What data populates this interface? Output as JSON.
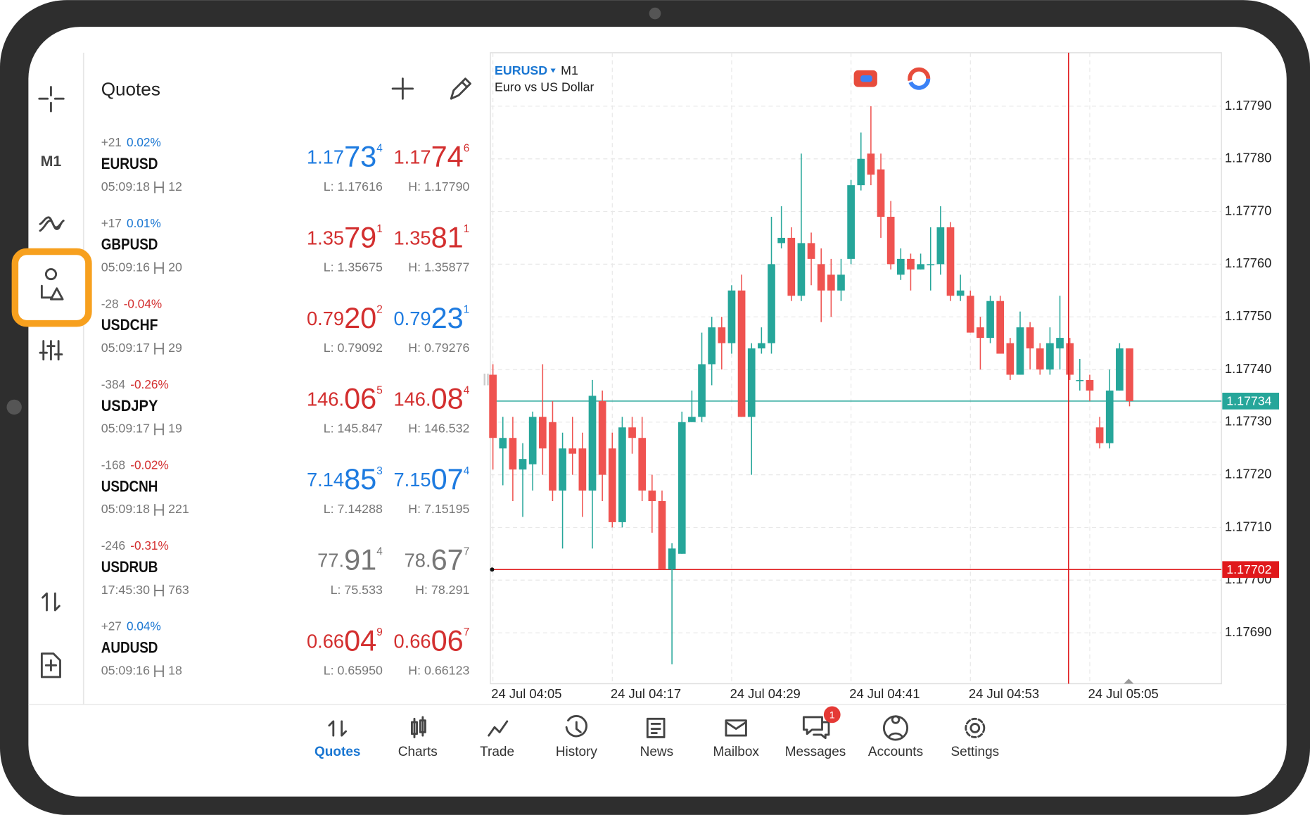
{
  "left_rail": {
    "timeframe": "M1"
  },
  "quotes": {
    "title": "Quotes",
    "rows": [
      {
        "change": "+21",
        "percent": "0.02%",
        "percent_color": "#1976d2",
        "symbol": "EURUSD",
        "time": "05:09:18",
        "spread": "12",
        "bid": {
          "pre": "1.17",
          "big": "73",
          "sup": "4",
          "color": "#1e7be0"
        },
        "ask": {
          "pre": "1.17",
          "big": "74",
          "sup": "6",
          "color": "#d32f2f"
        },
        "low": "L: 1.17616",
        "high": "H: 1.17790"
      },
      {
        "change": "+17",
        "percent": "0.01%",
        "percent_color": "#1976d2",
        "symbol": "GBPUSD",
        "time": "05:09:16",
        "spread": "20",
        "bid": {
          "pre": "1.35",
          "big": "79",
          "sup": "1",
          "color": "#d32f2f"
        },
        "ask": {
          "pre": "1.35",
          "big": "81",
          "sup": "1",
          "color": "#d32f2f"
        },
        "low": "L: 1.35675",
        "high": "H: 1.35877"
      },
      {
        "change": "-28",
        "percent": "-0.04%",
        "percent_color": "#d32f2f",
        "symbol": "USDCHF",
        "time": "05:09:17",
        "spread": "29",
        "bid": {
          "pre": "0.79",
          "big": "20",
          "sup": "2",
          "color": "#d32f2f"
        },
        "ask": {
          "pre": "0.79",
          "big": "23",
          "sup": "1",
          "color": "#1e7be0"
        },
        "low": "L: 0.79092",
        "high": "H: 0.79276"
      },
      {
        "change": "-384",
        "percent": "-0.26%",
        "percent_color": "#d32f2f",
        "symbol": "USDJPY",
        "time": "05:09:17",
        "spread": "19",
        "bid": {
          "pre": "146.",
          "big": "06",
          "sup": "5",
          "color": "#d32f2f"
        },
        "ask": {
          "pre": "146.",
          "big": "08",
          "sup": "4",
          "color": "#d32f2f"
        },
        "low": "L: 145.847",
        "high": "H: 146.532"
      },
      {
        "change": "-168",
        "percent": "-0.02%",
        "percent_color": "#d32f2f",
        "symbol": "USDCNH",
        "time": "05:09:18",
        "spread": "221",
        "bid": {
          "pre": "7.14",
          "big": "85",
          "sup": "3",
          "color": "#1e7be0"
        },
        "ask": {
          "pre": "7.15",
          "big": "07",
          "sup": "4",
          "color": "#1e7be0"
        },
        "low": "L: 7.14288",
        "high": "H: 7.15195"
      },
      {
        "change": "-246",
        "percent": "-0.31%",
        "percent_color": "#d32f2f",
        "symbol": "USDRUB",
        "time": "17:45:30",
        "spread": "763",
        "bid": {
          "pre": "77.",
          "big": "91",
          "sup": "4",
          "color": "#777777"
        },
        "ask": {
          "pre": "78.",
          "big": "67",
          "sup": "7",
          "color": "#777777"
        },
        "low": "L: 75.533",
        "high": "H: 78.291"
      },
      {
        "change": "+27",
        "percent": "0.04%",
        "percent_color": "#1976d2",
        "symbol": "AUDUSD",
        "time": "05:09:16",
        "spread": "18",
        "bid": {
          "pre": "0.66",
          "big": "04",
          "sup": "9",
          "color": "#d32f2f"
        },
        "ask": {
          "pre": "0.66",
          "big": "06",
          "sup": "7",
          "color": "#d32f2f"
        },
        "low": "L: 0.65950",
        "high": "H: 0.66123"
      }
    ]
  },
  "chart_data": {
    "type": "candlestick",
    "symbol": "EURUSD",
    "timeframe": "M1",
    "description": "Euro vs US Dollar",
    "up_color": "#26a69a",
    "down_color": "#ef5350",
    "grid": true,
    "ylim": [
      1.1768,
      1.178
    ],
    "yticks": [
      {
        "value": 1.1769,
        "label": "1.17690"
      },
      {
        "value": 1.177,
        "label": "1.17700"
      },
      {
        "value": 1.1771,
        "label": "1.17710"
      },
      {
        "value": 1.1772,
        "label": "1.17720"
      },
      {
        "value": 1.1773,
        "label": "1.17730"
      },
      {
        "value": 1.1774,
        "label": "1.17740"
      },
      {
        "value": 1.1775,
        "label": "1.17750"
      },
      {
        "value": 1.1776,
        "label": "1.17760"
      },
      {
        "value": 1.1777,
        "label": "1.17770"
      },
      {
        "value": 1.1778,
        "label": "1.17780"
      },
      {
        "value": 1.1779,
        "label": "1.17790"
      }
    ],
    "price_lines": [
      {
        "value": 1.17734,
        "color": "#26a69a"
      },
      {
        "value": 1.17702,
        "color": "#e0181b"
      }
    ],
    "categories": [
      "24 Jul 04:05",
      null,
      null,
      null,
      null,
      null,
      null,
      null,
      null,
      null,
      null,
      null,
      "24 Jul 04:17",
      null,
      null,
      null,
      null,
      null,
      null,
      null,
      null,
      null,
      null,
      null,
      "24 Jul 04:29",
      null,
      null,
      null,
      null,
      null,
      null,
      null,
      null,
      null,
      null,
      null,
      "24 Jul 04:41",
      null,
      null,
      null,
      null,
      null,
      null,
      null,
      null,
      null,
      null,
      null,
      "24 Jul 04:53",
      null,
      null,
      null,
      null,
      null,
      null,
      null,
      null,
      null,
      null,
      null,
      "24 Jul 05:05",
      null,
      null,
      null,
      null
    ],
    "ohlc": [
      [
        1.17739,
        1.17741,
        1.17721,
        1.17727
      ],
      [
        1.17725,
        1.17731,
        1.17718,
        1.17727
      ],
      [
        1.17727,
        1.17731,
        1.17715,
        1.17721
      ],
      [
        1.17721,
        1.17726,
        1.17712,
        1.17723
      ],
      [
        1.17722,
        1.17732,
        1.17717,
        1.17731
      ],
      [
        1.17731,
        1.17741,
        1.1772,
        1.17725
      ],
      [
        1.1773,
        1.17734,
        1.17715,
        1.17717
      ],
      [
        1.17717,
        1.17728,
        1.17706,
        1.17725
      ],
      [
        1.17725,
        1.17731,
        1.1772,
        1.17724
      ],
      [
        1.17725,
        1.17728,
        1.17712,
        1.17717
      ],
      [
        1.17717,
        1.17738,
        1.17706,
        1.17735
      ],
      [
        1.17734,
        1.17736,
        1.17715,
        1.1772
      ],
      [
        1.17725,
        1.17728,
        1.1771,
        1.17711
      ],
      [
        1.17711,
        1.17731,
        1.1771,
        1.17729
      ],
      [
        1.17729,
        1.17731,
        1.17724,
        1.17727
      ],
      [
        1.17727,
        1.17731,
        1.17715,
        1.17717
      ],
      [
        1.17717,
        1.1772,
        1.17709,
        1.17715
      ],
      [
        1.17715,
        1.17717,
        1.17702,
        1.17702
      ],
      [
        1.17702,
        1.17707,
        1.17684,
        1.17706
      ],
      [
        1.17705,
        1.17732,
        1.17705,
        1.1773
      ],
      [
        1.1773,
        1.17736,
        1.1773,
        1.17731
      ],
      [
        1.17731,
        1.17747,
        1.1773,
        1.17741
      ],
      [
        1.17741,
        1.1775,
        1.17737,
        1.17748
      ],
      [
        1.17748,
        1.1775,
        1.1774,
        1.17745
      ],
      [
        1.17745,
        1.17756,
        1.17743,
        1.17755
      ],
      [
        1.17755,
        1.17758,
        1.17731,
        1.17731
      ],
      [
        1.17731,
        1.17745,
        1.1772,
        1.17744
      ],
      [
        1.17744,
        1.17748,
        1.17743,
        1.17745
      ],
      [
        1.17745,
        1.17769,
        1.17743,
        1.1776
      ],
      [
        1.17764,
        1.17771,
        1.17763,
        1.17765
      ],
      [
        1.17765,
        1.17767,
        1.17753,
        1.17754
      ],
      [
        1.17754,
        1.17781,
        1.17753,
        1.17764
      ],
      [
        1.17764,
        1.17766,
        1.17756,
        1.17761
      ],
      [
        1.1776,
        1.17763,
        1.17749,
        1.17755
      ],
      [
        1.17758,
        1.17761,
        1.1775,
        1.17755
      ],
      [
        1.17755,
        1.17761,
        1.17753,
        1.17758
      ],
      [
        1.17761,
        1.17776,
        1.1776,
        1.17775
      ],
      [
        1.17775,
        1.17785,
        1.17774,
        1.1778
      ],
      [
        1.17781,
        1.1779,
        1.17775,
        1.17777
      ],
      [
        1.17778,
        1.17781,
        1.17765,
        1.17769
      ],
      [
        1.17769,
        1.17772,
        1.17759,
        1.1776
      ],
      [
        1.17758,
        1.17763,
        1.17757,
        1.17761
      ],
      [
        1.17761,
        1.17762,
        1.17755,
        1.17759
      ],
      [
        1.17759,
        1.17762,
        1.17759,
        1.1776
      ],
      [
        1.1776,
        1.17767,
        1.17755,
        1.1776
      ],
      [
        1.1776,
        1.17771,
        1.17758,
        1.17767
      ],
      [
        1.17767,
        1.17768,
        1.17753,
        1.17754
      ],
      [
        1.17754,
        1.17758,
        1.17753,
        1.17755
      ],
      [
        1.17754,
        1.17755,
        1.17747,
        1.17747
      ],
      [
        1.17748,
        1.1775,
        1.1774,
        1.17746
      ],
      [
        1.17746,
        1.17754,
        1.17745,
        1.17753
      ],
      [
        1.17753,
        1.17754,
        1.17743,
        1.17743
      ],
      [
        1.17745,
        1.17746,
        1.17738,
        1.17739
      ],
      [
        1.17739,
        1.17751,
        1.17739,
        1.17748
      ],
      [
        1.17748,
        1.17749,
        1.1774,
        1.17744
      ],
      [
        1.17744,
        1.17745,
        1.17739,
        1.1774
      ],
      [
        1.1774,
        1.17748,
        1.17739,
        1.17745
      ],
      [
        1.17744,
        1.17754,
        1.1774,
        1.17746
      ],
      [
        1.17745,
        1.17746,
        1.17738,
        1.17739
      ],
      [
        1.17738,
        1.17742,
        1.17736,
        1.17738
      ],
      [
        1.17738,
        1.17739,
        1.17734,
        1.17736
      ],
      [
        1.17729,
        1.17731,
        1.17725,
        1.17726
      ],
      [
        1.17726,
        1.1774,
        1.17725,
        1.17736
      ],
      [
        1.17736,
        1.17745,
        1.17736,
        1.17744
      ],
      [
        1.17744,
        1.17744,
        1.17733,
        1.17734
      ]
    ]
  },
  "nav": {
    "tabs": [
      {
        "label": "Quotes",
        "active": true
      },
      {
        "label": "Charts"
      },
      {
        "label": "Trade"
      },
      {
        "label": "History"
      },
      {
        "label": "News"
      },
      {
        "label": "Mailbox"
      },
      {
        "label": "Messages",
        "badge": "1"
      },
      {
        "label": "Accounts"
      },
      {
        "label": "Settings"
      }
    ]
  }
}
